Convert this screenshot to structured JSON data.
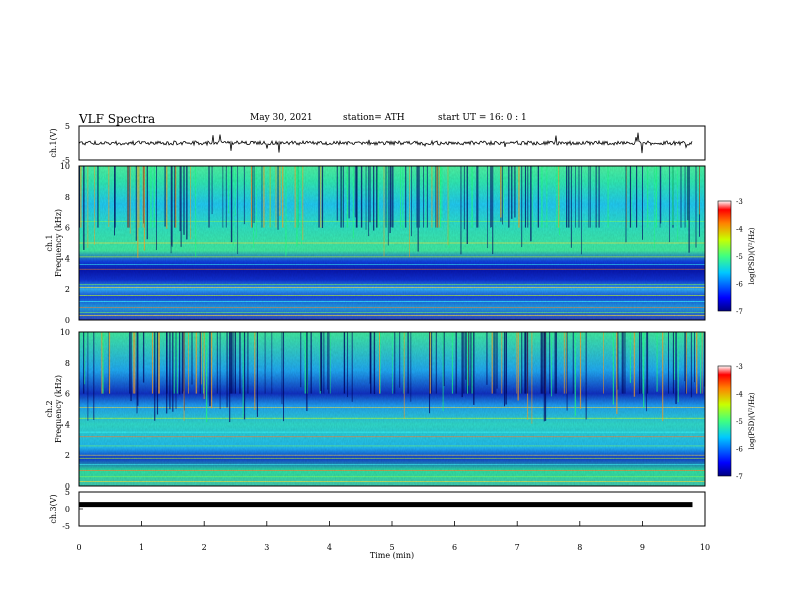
{
  "header": {
    "title": "VLF Spectra",
    "date": "May 30, 2021",
    "station": "station= ATH",
    "start": "start  UT =   16: 0  : 1"
  },
  "chart_data": [
    {
      "type": "line",
      "title": "",
      "ylabel": "ch.1(V)",
      "xlabel": "",
      "xlim": [
        0,
        10
      ],
      "ylim": [
        -5,
        5
      ],
      "yticks": [
        "5",
        "-5"
      ],
      "series": [
        {
          "x": [
            0,
            9.8
          ],
          "y": [
            0,
            0
          ]
        }
      ]
    },
    {
      "type": "heatmap",
      "ylabel": "Frequency (kHz)",
      "panel_label": "ch.1",
      "xlim": [
        0,
        10
      ],
      "ylim": [
        0,
        10
      ],
      "yticks": [
        "0",
        "2",
        "4",
        "6",
        "8",
        "10"
      ],
      "colorbar": {
        "label": "log(PSD)(V²/Hz)",
        "range": [
          -7,
          -3
        ],
        "ticks": [
          "-3",
          "-4",
          "-5",
          "-6",
          "-7"
        ]
      }
    },
    {
      "type": "heatmap",
      "ylabel": "Frequency (kHz)",
      "panel_label": "ch.2",
      "xlim": [
        0,
        10
      ],
      "ylim": [
        0,
        10
      ],
      "yticks": [
        "0",
        "2",
        "4",
        "6",
        "8",
        "10"
      ],
      "colorbar": {
        "label": "log(PSD)(V²/Hz)",
        "range": [
          -7,
          -3
        ],
        "ticks": [
          "-3",
          "-4",
          "-5",
          "-6",
          "-7"
        ]
      }
    },
    {
      "type": "line",
      "ylabel": "ch.3(V)",
      "xlabel": "Time  (min)",
      "xlim": [
        0,
        10
      ],
      "ylim": [
        -5,
        5
      ],
      "yticks": [
        "5",
        "0",
        "-5"
      ],
      "xticks": [
        "0",
        "1",
        "2",
        "3",
        "4",
        "5",
        "6",
        "7",
        "8",
        "9",
        "10"
      ],
      "series": [
        {
          "x": [
            0,
            9.8
          ],
          "y": [
            1.3,
            1.3
          ]
        }
      ]
    }
  ]
}
